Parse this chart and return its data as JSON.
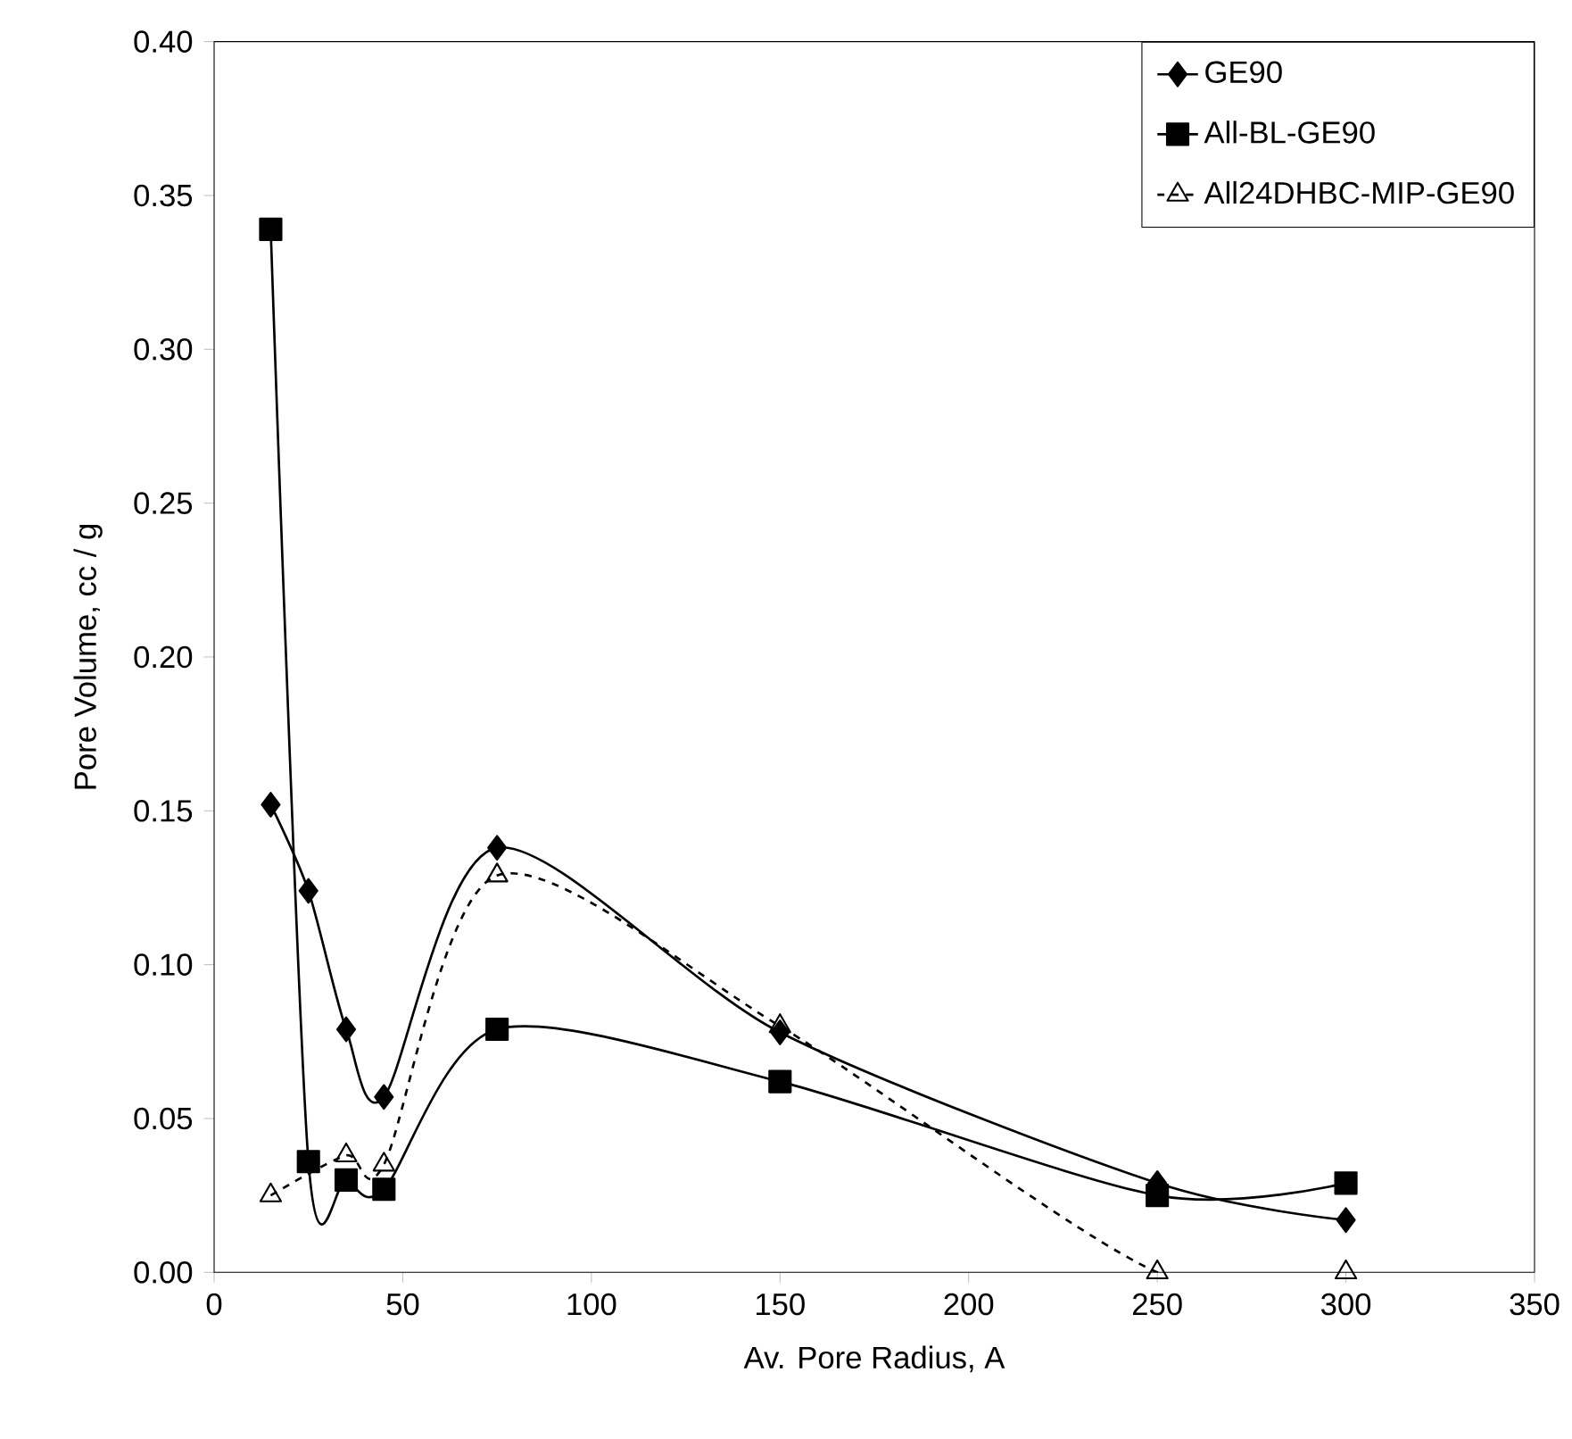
{
  "chart_data": {
    "type": "line",
    "xlabel": "Av. Pore Radius, A",
    "ylabel": "Pore Volume, cc / g",
    "xlim": [
      0,
      350
    ],
    "xticks": [
      0,
      50,
      100,
      150,
      200,
      250,
      300,
      350
    ],
    "ylim": [
      0,
      0.4
    ],
    "yticks": [
      {
        "value": 0,
        "label": "0.00"
      },
      {
        "value": 0.05,
        "label": "0.05"
      },
      {
        "value": 0.1,
        "label": "0.10"
      },
      {
        "value": 0.15,
        "label": "0.15"
      },
      {
        "value": 0.2,
        "label": "0.20"
      },
      {
        "value": 0.25,
        "label": "0.25"
      },
      {
        "value": 0.3,
        "label": "0.30"
      },
      {
        "value": 0.35,
        "label": "0.35"
      },
      {
        "value": 0.4,
        "label": "0.40"
      }
    ],
    "legend": "top right",
    "grid": false,
    "series": [
      {
        "name": "GE90",
        "color": "#000000",
        "marker": "diamond",
        "line_style": "solid",
        "x": [
          15,
          25,
          35,
          45,
          75,
          150,
          250,
          300
        ],
        "values": [
          0.152,
          0.124,
          0.079,
          0.057,
          0.138,
          0.078,
          0.029,
          0.017
        ]
      },
      {
        "name": "All-BL-GE90",
        "color": "#000000",
        "marker": "square",
        "line_style": "solid",
        "x": [
          15,
          25,
          35,
          45,
          75,
          150,
          250,
          300
        ],
        "values": [
          0.339,
          0.036,
          0.03,
          0.027,
          0.079,
          0.062,
          0.025,
          0.029
        ]
      },
      {
        "name": "All24DHBC-MIP-GE90",
        "color": "#000000",
        "marker": "triangle",
        "line_style": "dashed",
        "x": [
          15,
          35,
          45,
          75,
          150,
          250,
          300
        ],
        "values": [
          0.025,
          0.038,
          0.035,
          0.129,
          0.08,
          0.0,
          0.0
        ]
      }
    ]
  }
}
